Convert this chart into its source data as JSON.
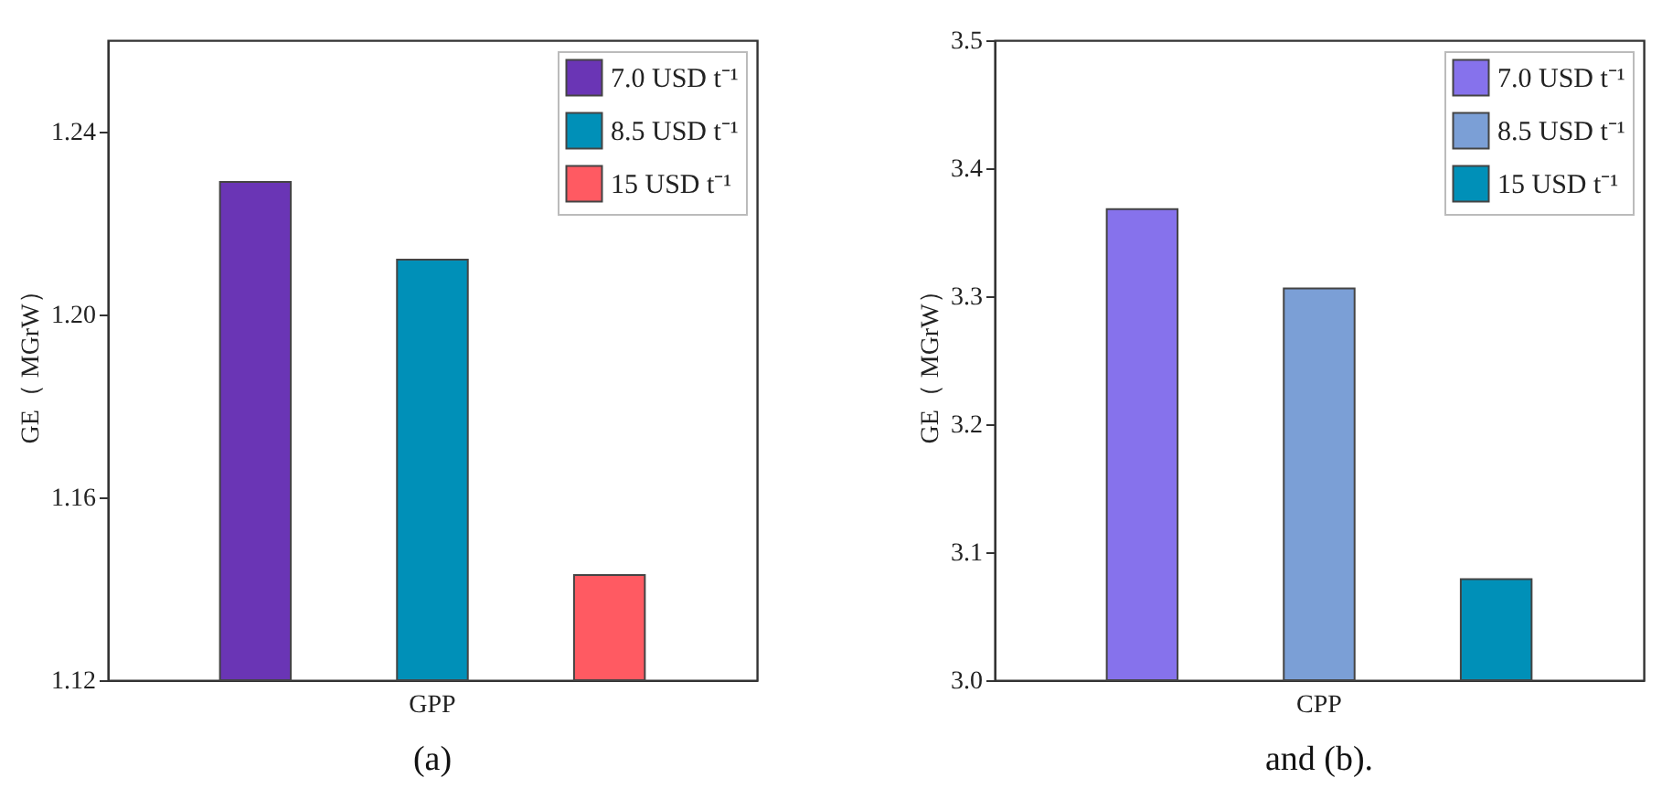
{
  "chart_data": [
    {
      "type": "bar",
      "categories": [
        "GPP"
      ],
      "ylabel": "GE（ MGrW）",
      "ylim": [
        1.12,
        1.26
      ],
      "yticks": [
        1.12,
        1.16,
        {
          "value": 1.2,
          "label": "1.20"
        },
        1.24
      ],
      "grid": false,
      "legend": "top right",
      "annotations": [
        "(a)"
      ],
      "series": [
        {
          "name": "7.0 USD t⁻¹",
          "color": "#6a35b5",
          "values": [
            1.229
          ]
        },
        {
          "name": "8.5 USD t⁻¹",
          "color": "#0090b8",
          "values": [
            1.212
          ]
        },
        {
          "name": "15 USD t⁻¹",
          "color": "#ff5a62",
          "values": [
            1.143
          ]
        }
      ]
    },
    {
      "type": "bar",
      "categories": [
        "CPP"
      ],
      "ylabel": "GE（ MGrW）",
      "ylim": [
        3.0,
        3.5
      ],
      "yticks": [
        {
          "value": 3,
          "label": "3.0"
        },
        3.1,
        3.2,
        3.3,
        3.4,
        3.5
      ],
      "grid": false,
      "legend": "top right",
      "annotations": [
        "and (b)."
      ],
      "series": [
        {
          "name": "7.0 USD t⁻¹",
          "color": "#8672ec",
          "values": [
            3.368
          ]
        },
        {
          "name": "8.5 USD t⁻¹",
          "color": "#7b9fd6",
          "values": [
            3.306
          ]
        },
        {
          "name": "15 USD t⁻¹",
          "color": "#0090b8",
          "values": [
            3.079
          ]
        }
      ]
    }
  ]
}
